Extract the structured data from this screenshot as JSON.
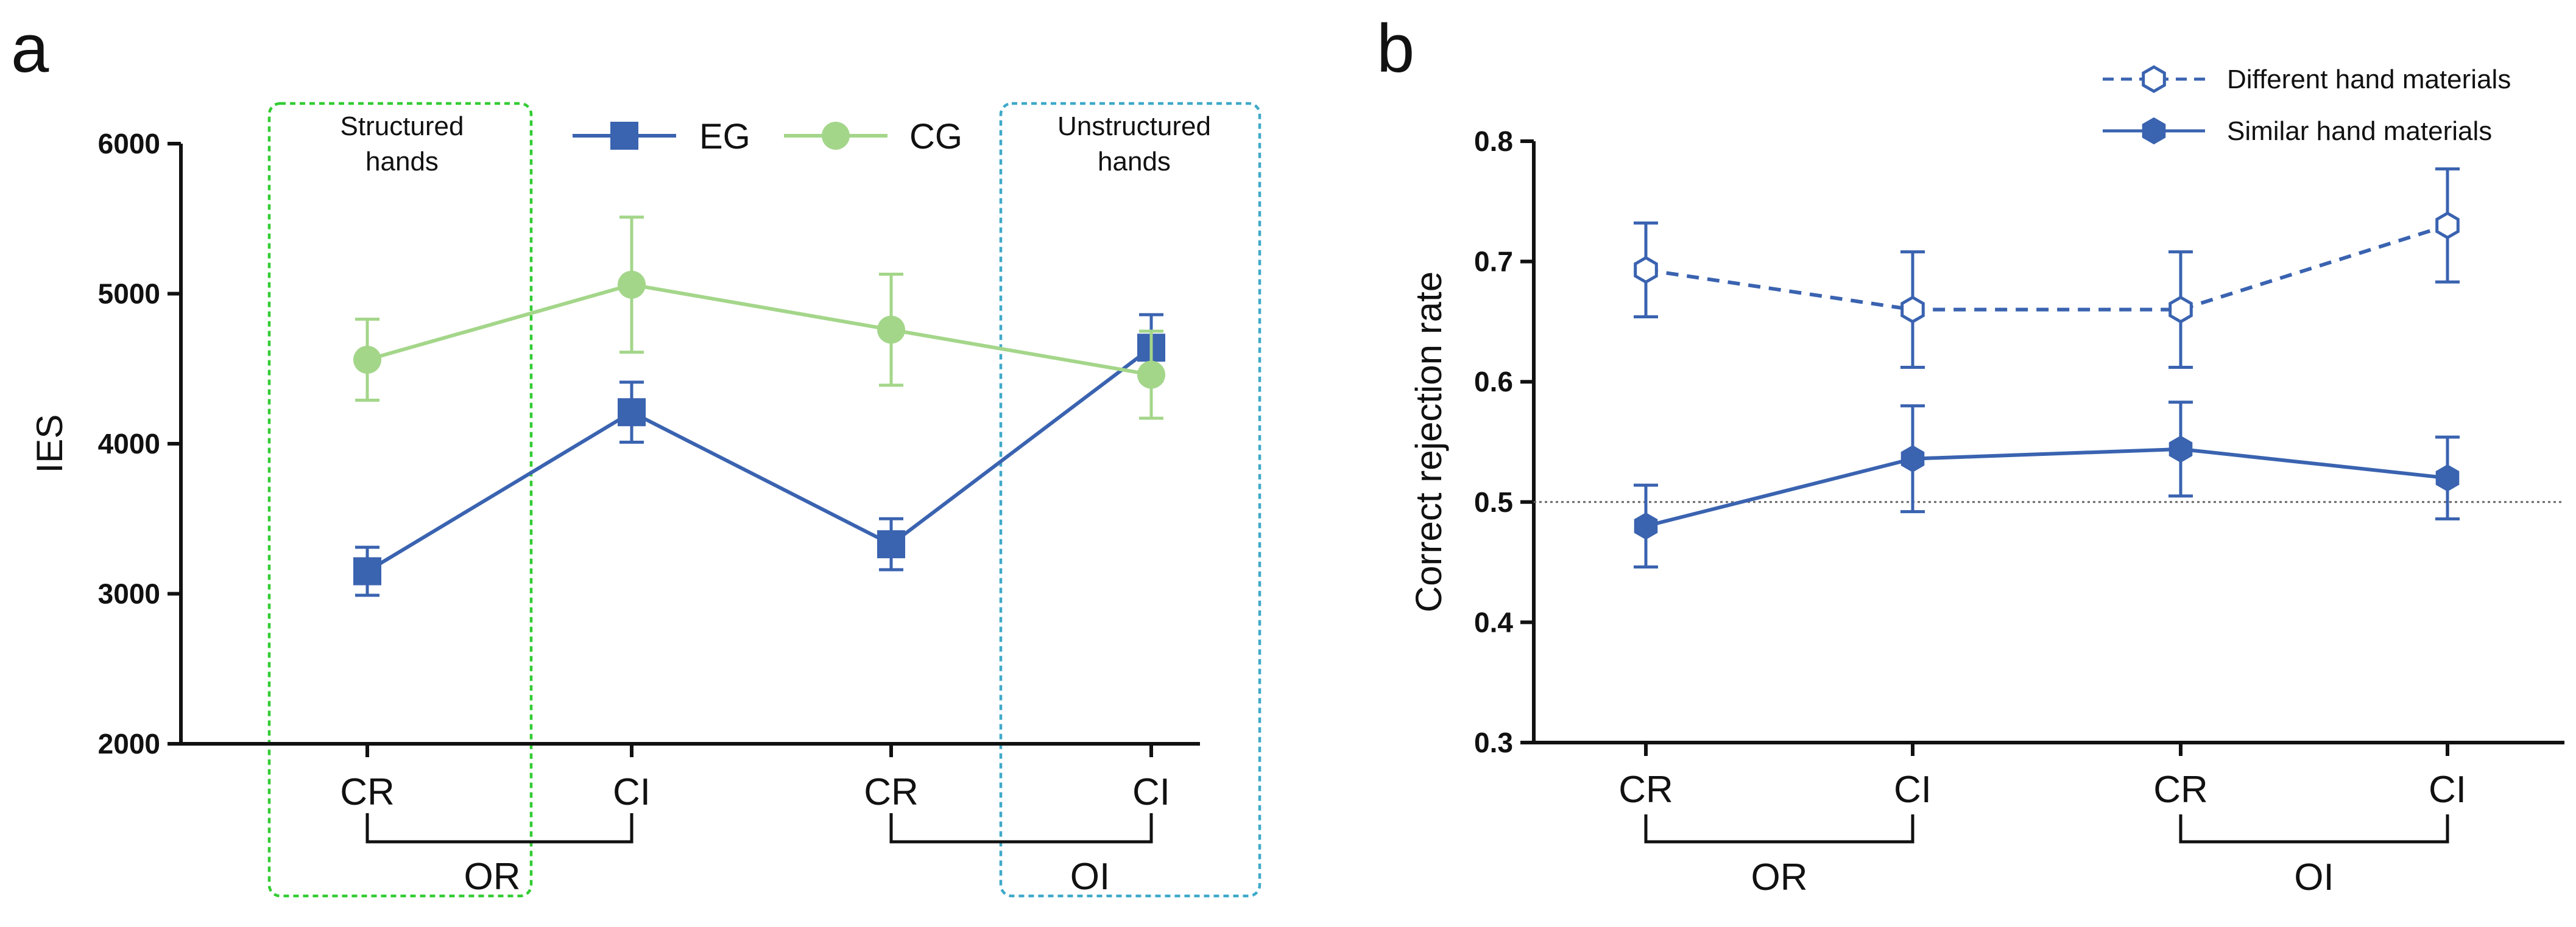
{
  "colors": {
    "eg": "#3A63B0",
    "cg": "#A4D68A",
    "structured_box": "#33CC33",
    "unstructured_box": "#3FA9C9",
    "axis": "#111111",
    "ref_line": "#666666"
  },
  "chart_data": [
    {
      "panel": "a",
      "type": "line",
      "title": "",
      "xlabel": "",
      "ylabel": "IES",
      "ylim": [
        2000,
        6000
      ],
      "yticks": [
        "2000",
        "3000",
        "4000",
        "5000",
        "6000"
      ],
      "categories": [
        "CR",
        "CI",
        "CR",
        "CI"
      ],
      "groups": [
        {
          "label": "OR",
          "span": [
            0,
            1
          ]
        },
        {
          "label": "OI",
          "span": [
            2,
            3
          ]
        }
      ],
      "series": [
        {
          "name": "EG",
          "marker": "square",
          "color": "#3A63B0",
          "values": [
            3150,
            4210,
            3330,
            4640
          ],
          "errors": [
            160,
            200,
            170,
            220
          ]
        },
        {
          "name": "CG",
          "marker": "circle",
          "color": "#A4D68A",
          "values": [
            4560,
            5060,
            4760,
            4460
          ],
          "errors": [
            270,
            450,
            370,
            290
          ]
        }
      ],
      "highlight_boxes": [
        {
          "label_lines": [
            "Structured",
            "hands"
          ],
          "covers": [
            0
          ]
        },
        {
          "label_lines": [
            "Unstructured",
            "hands"
          ],
          "covers": [
            3
          ]
        }
      ],
      "legend": "top-center"
    },
    {
      "panel": "b",
      "type": "line",
      "title": "",
      "xlabel": "",
      "ylabel": "Correct rejection rate",
      "ylim": [
        0.3,
        0.8
      ],
      "yticks": [
        "0.3",
        "0.4",
        "0.5",
        "0.6",
        "0.7",
        "0.8"
      ],
      "reference_line": 0.5,
      "categories": [
        "CR",
        "CI",
        "CR",
        "CI"
      ],
      "groups": [
        {
          "label": "OR",
          "span": [
            0,
            1
          ]
        },
        {
          "label": "OI",
          "span": [
            2,
            3
          ]
        }
      ],
      "series": [
        {
          "name": "Different hand materials",
          "marker": "hexagon-open",
          "style": "dashed",
          "color": "#3A63B0",
          "values": [
            0.693,
            0.66,
            0.66,
            0.73
          ],
          "errors": [
            0.039,
            0.048,
            0.048,
            0.047
          ]
        },
        {
          "name": "Similar hand materials",
          "marker": "hexagon-filled",
          "style": "solid",
          "color": "#3A63B0",
          "values": [
            0.48,
            0.536,
            0.544,
            0.52
          ],
          "errors": [
            0.034,
            0.044,
            0.039,
            0.034
          ]
        }
      ],
      "legend": "top-right"
    }
  ]
}
